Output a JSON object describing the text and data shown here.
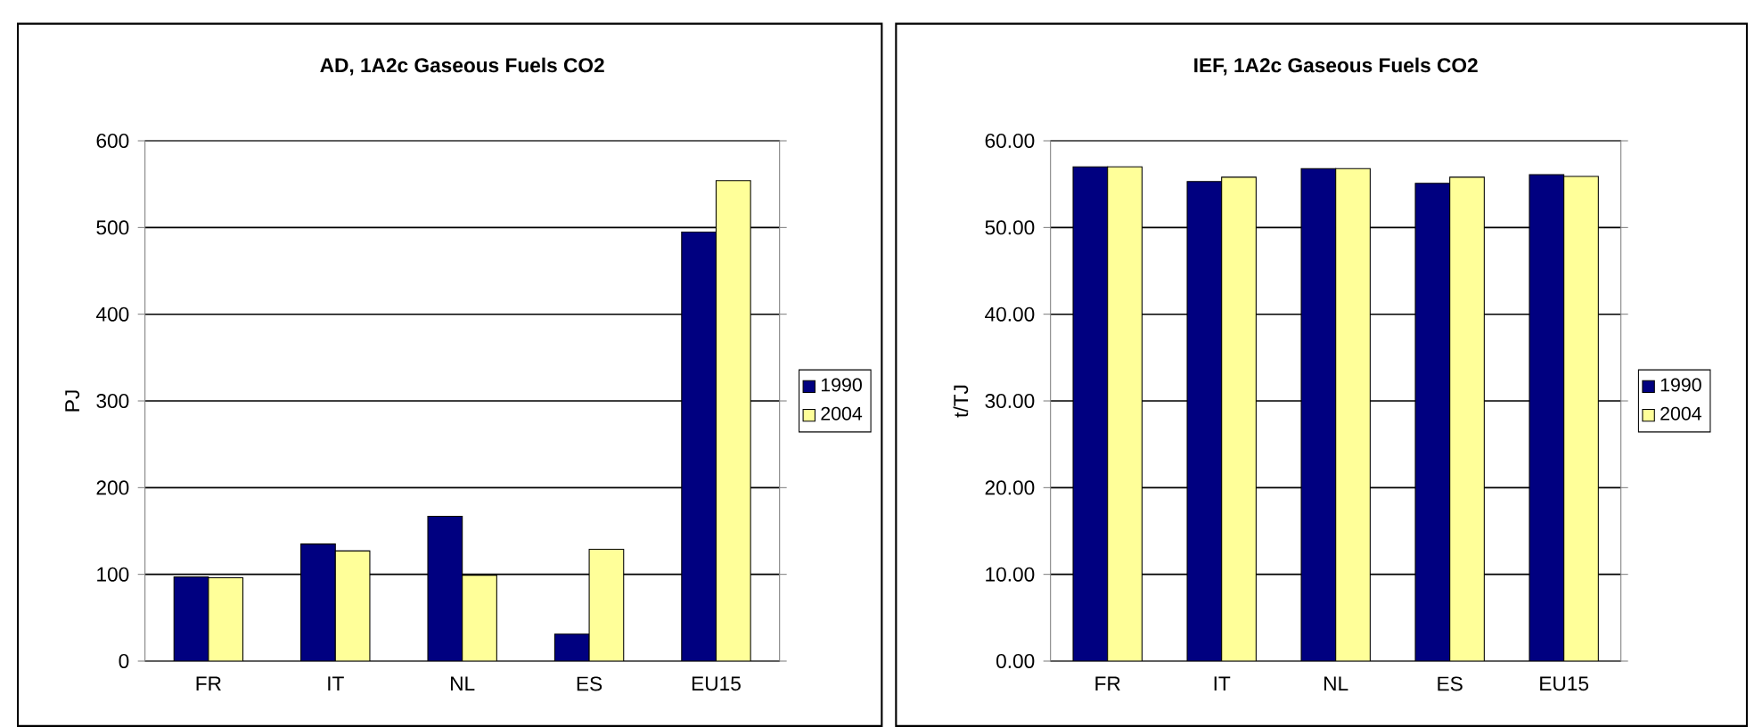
{
  "chart_data": [
    {
      "type": "bar",
      "title": "AD, 1A2c Gaseous Fuels CO2",
      "ylabel": "PJ",
      "categories": [
        "FR",
        "IT",
        "NL",
        "ES",
        "EU15"
      ],
      "series": [
        {
          "name": "1990",
          "color": "#000080",
          "values": [
            97,
            135,
            167,
            31,
            495
          ]
        },
        {
          "name": "2004",
          "color": "#ffff99",
          "values": [
            96,
            127,
            99,
            129,
            554
          ]
        }
      ],
      "ylim": [
        0,
        600
      ],
      "yticks": [
        0,
        100,
        200,
        300,
        400,
        500,
        600
      ],
      "grid": "y",
      "legend": "right"
    },
    {
      "type": "bar",
      "title": "IEF, 1A2c Gaseous Fuels CO2",
      "ylabel": "t/TJ",
      "categories": [
        "FR",
        "IT",
        "NL",
        "ES",
        "EU15"
      ],
      "series": [
        {
          "name": "1990",
          "color": "#000080",
          "values": [
            57.0,
            55.3,
            56.8,
            55.1,
            56.1
          ]
        },
        {
          "name": "2004",
          "color": "#ffff99",
          "values": [
            57.0,
            55.8,
            56.8,
            55.8,
            55.9
          ]
        }
      ],
      "ylim": [
        0,
        60
      ],
      "yticks": [
        {
          "value": 0,
          "label": "0.00"
        },
        {
          "value": 10,
          "label": "10.00"
        },
        {
          "value": 20,
          "label": "20.00"
        },
        {
          "value": 30,
          "label": "30.00"
        },
        {
          "value": 40,
          "label": "40.00"
        },
        {
          "value": 50,
          "label": "50.00"
        },
        {
          "value": 60,
          "label": "60.00"
        }
      ],
      "grid": "y",
      "legend": "right"
    }
  ]
}
